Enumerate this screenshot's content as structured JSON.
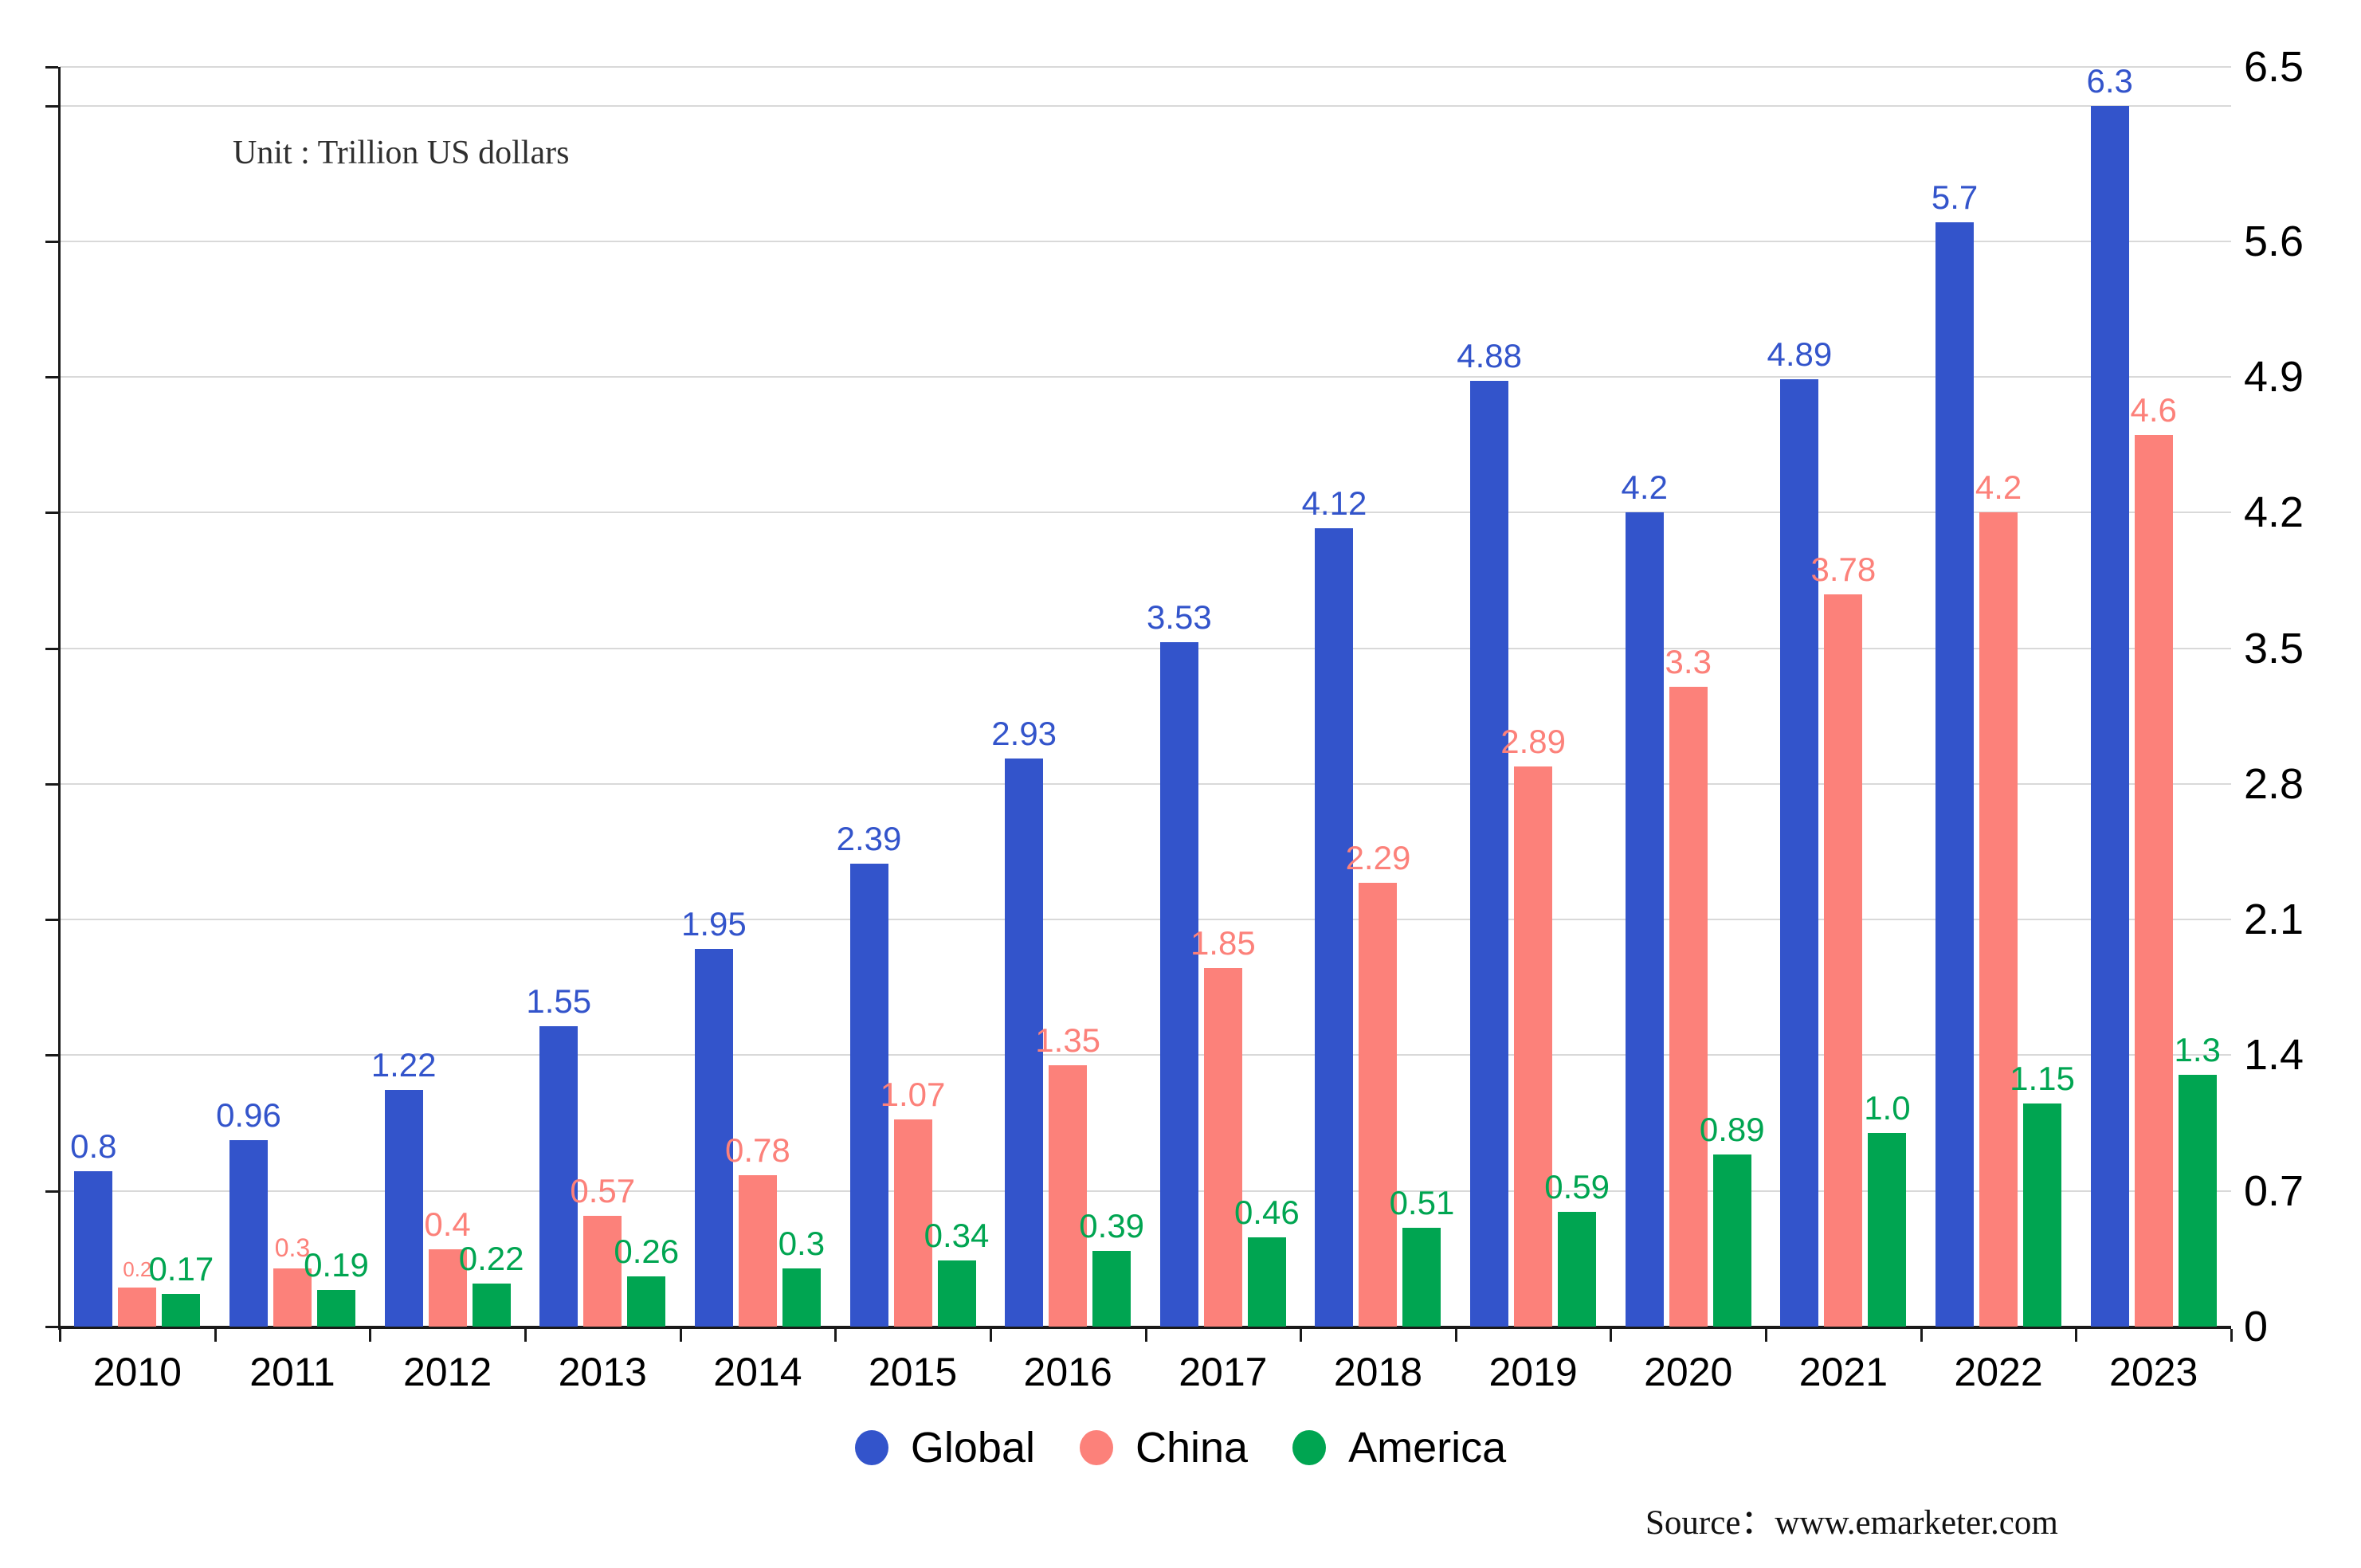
{
  "unit_label": "Unit : Trillion US dollars",
  "source_label": "Source：www.emarketer.com",
  "legend": [
    {
      "label": "Global",
      "color": "#3354cb"
    },
    {
      "label": "China",
      "color": "#fc817a"
    },
    {
      "label": "America",
      "color": "#00a551"
    }
  ],
  "colors": {
    "global": "#3354cb",
    "china": "#fc817a",
    "america": "#00a551",
    "gridline": "#d9d9d9",
    "axis": "#1a1a1a"
  },
  "chart_data": {
    "type": "bar",
    "title": "",
    "xlabel": "",
    "ylabel": "Trillion US dollars",
    "grid": true,
    "legend_position": "bottom",
    "ylim": [
      0,
      6.5
    ],
    "categories": [
      "2010",
      "2011",
      "2012",
      "2013",
      "2014",
      "2015",
      "2016",
      "2017",
      "2018",
      "2019",
      "2020",
      "2021",
      "2022",
      "2023"
    ],
    "series": [
      {
        "name": "Global",
        "color": "#3354cb",
        "values": [
          0.8,
          0.96,
          1.22,
          1.55,
          1.95,
          2.39,
          2.93,
          3.53,
          4.12,
          4.88,
          4.2,
          4.89,
          5.7,
          6.3
        ],
        "labels": [
          "0.8",
          "0.96",
          "1.22",
          "1.55",
          "1.95",
          "2.39",
          "2.93",
          "3.53",
          "4.12",
          "4.88",
          "4.2",
          "4.89",
          "5.7",
          "6.3"
        ],
        "label_size_overrides": {}
      },
      {
        "name": "China",
        "color": "#fc817a",
        "values": [
          0.2,
          0.3,
          0.4,
          0.57,
          0.78,
          1.07,
          1.35,
          1.85,
          2.29,
          2.89,
          3.3,
          3.78,
          4.2,
          4.6
        ],
        "labels": [
          "0.2",
          "0.3",
          "0.4",
          "0.57",
          "0.78",
          "1.07",
          "1.35",
          "1.85",
          "2.29",
          "2.89",
          "3.3",
          "3.78",
          "4.2",
          "4.6"
        ],
        "label_size_overrides": {
          "0": 26,
          "1": 32
        }
      },
      {
        "name": "America",
        "color": "#00a551",
        "values": [
          0.17,
          0.19,
          0.22,
          0.26,
          0.3,
          0.34,
          0.39,
          0.46,
          0.51,
          0.59,
          0.89,
          1.0,
          1.15,
          1.3
        ],
        "labels": [
          "0.17",
          "0.19",
          "0.22",
          "0.26",
          "0.3",
          "0.34",
          "0.39",
          "0.46",
          "0.51",
          "0.59",
          "0.89",
          "1.0",
          "1.15",
          "1.3"
        ],
        "label_size_overrides": {}
      }
    ],
    "y_axis_right_ticks": [
      {
        "value": 6.5,
        "label": "6.5"
      },
      {
        "value": 5.6,
        "label": "5.6"
      },
      {
        "value": 4.9,
        "label": "4.9"
      },
      {
        "value": 4.2,
        "label": "4.2"
      },
      {
        "value": 3.5,
        "label": "3.5"
      },
      {
        "value": 2.8,
        "label": "2.8"
      },
      {
        "value": 2.1,
        "label": "2.1"
      },
      {
        "value": 1.4,
        "label": "1.4"
      },
      {
        "value": 0.7,
        "label": "0.7"
      },
      {
        "value": 0,
        "label": "0"
      }
    ],
    "gridline_values": [
      0.7,
      1.4,
      2.1,
      2.8,
      3.5,
      4.2,
      4.9,
      5.6,
      6.3,
      6.5
    ]
  }
}
